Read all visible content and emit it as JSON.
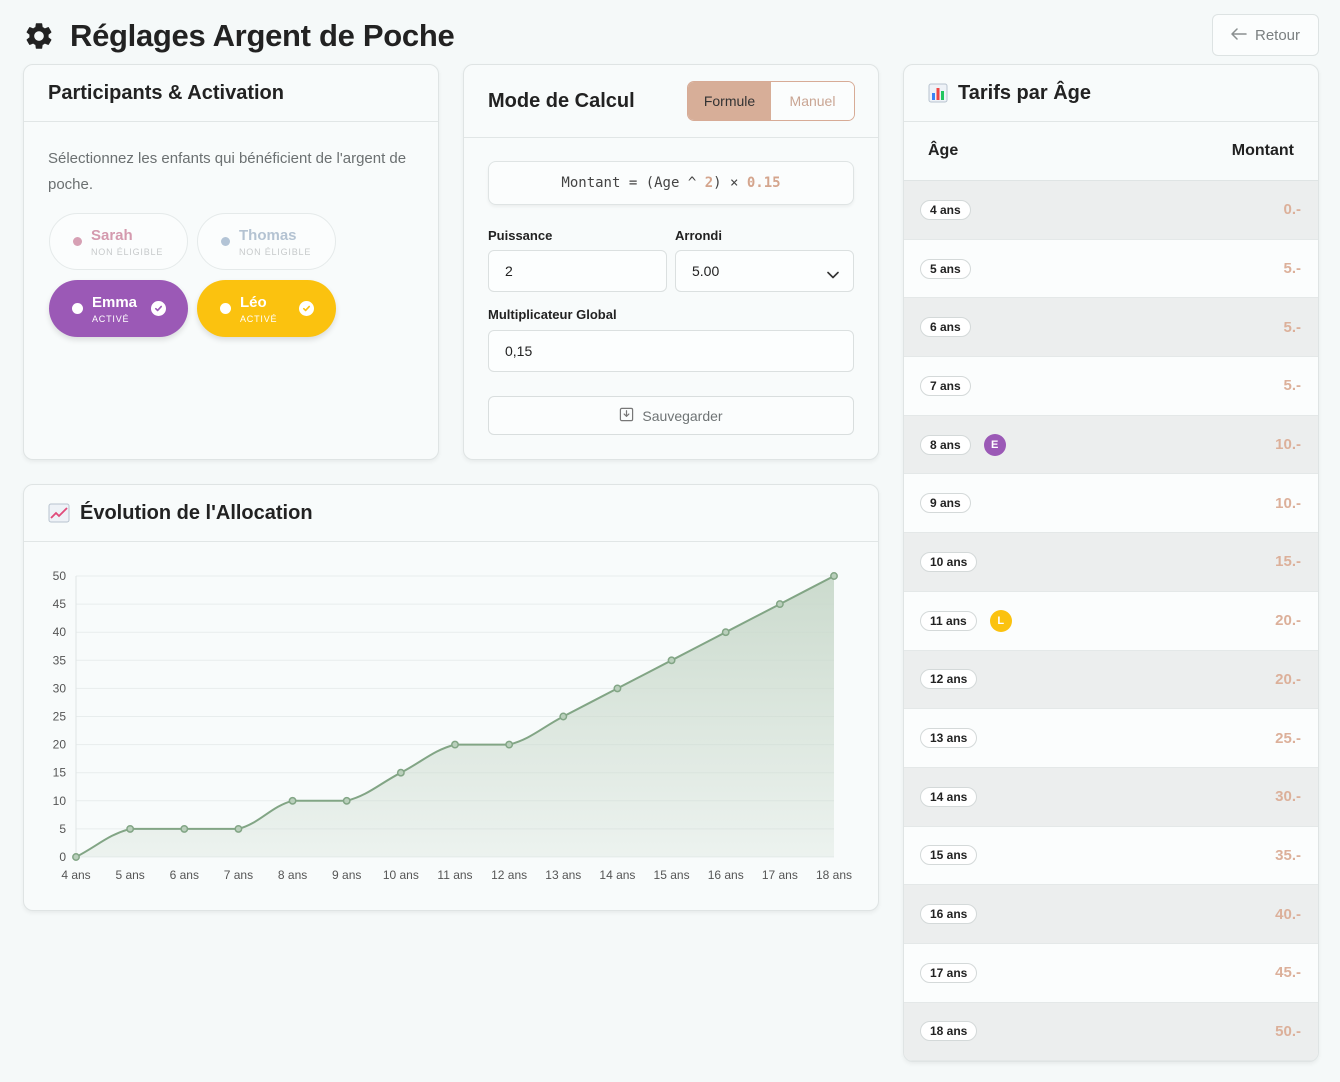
{
  "header": {
    "title": "Réglages Argent de Poche",
    "back_label": "Retour"
  },
  "participants": {
    "title": "Participants & Activation",
    "description": "Sélectionnez les enfants qui bénéficient de l'argent de poche.",
    "children": [
      {
        "name": "Sarah",
        "status": "NON ÉLIGIBLE",
        "active": false,
        "color": "#d38fa8"
      },
      {
        "name": "Thomas",
        "status": "NON ÉLIGIBLE",
        "active": false,
        "color": "#a9bfd6"
      },
      {
        "name": "Emma",
        "status": "ACTIVÉ",
        "active": true,
        "color": "#9b59b6"
      },
      {
        "name": "Léo",
        "status": "ACTIVÉ",
        "active": true,
        "color": "#fbc20f"
      }
    ]
  },
  "mode": {
    "title": "Mode de Calcul",
    "tabs": [
      "Formule",
      "Manuel"
    ],
    "selected_tab": "Formule",
    "formula": {
      "prefix": "Montant = (Age ^ ",
      "power": "2",
      "times": ") × ",
      "multiplier": "0.15"
    },
    "power_label": "Puissance",
    "power_value": "2",
    "rounding_label": "Arrondi",
    "rounding_value": "5.00",
    "multiplier_label": "Multiplicateur Global",
    "multiplier_value": "0,15",
    "save_label": "Sauvegarder"
  },
  "tarifs": {
    "title": "Tarifs par Âge",
    "col_age": "Âge",
    "col_amount": "Montant",
    "rows": [
      {
        "age": "4 ans",
        "amount": "0.-"
      },
      {
        "age": "5 ans",
        "amount": "5.-"
      },
      {
        "age": "6 ans",
        "amount": "5.-"
      },
      {
        "age": "7 ans",
        "amount": "5.-"
      },
      {
        "age": "8 ans",
        "amount": "10.-",
        "badge": "E",
        "badge_color": "#9b59b6"
      },
      {
        "age": "9 ans",
        "amount": "10.-"
      },
      {
        "age": "10 ans",
        "amount": "15.-"
      },
      {
        "age": "11 ans",
        "amount": "20.-",
        "badge": "L",
        "badge_color": "#fbc20f"
      },
      {
        "age": "12 ans",
        "amount": "20.-"
      },
      {
        "age": "13 ans",
        "amount": "25.-"
      },
      {
        "age": "14 ans",
        "amount": "30.-"
      },
      {
        "age": "15 ans",
        "amount": "35.-"
      },
      {
        "age": "16 ans",
        "amount": "40.-"
      },
      {
        "age": "17 ans",
        "amount": "45.-"
      },
      {
        "age": "18 ans",
        "amount": "50.-"
      }
    ]
  },
  "chart_title": "Évolution de l'Allocation",
  "chart_data": {
    "type": "area",
    "title": "Évolution de l'Allocation",
    "categories": [
      "4 ans",
      "5 ans",
      "6 ans",
      "7 ans",
      "8 ans",
      "9 ans",
      "10 ans",
      "11 ans",
      "12 ans",
      "13 ans",
      "14 ans",
      "15 ans",
      "16 ans",
      "17 ans",
      "18 ans"
    ],
    "values": [
      0,
      5,
      5,
      5,
      10,
      10,
      15,
      20,
      20,
      25,
      30,
      35,
      40,
      45,
      50
    ],
    "ylim": [
      0,
      50
    ],
    "yticks": [
      0,
      5,
      10,
      15,
      20,
      25,
      30,
      35,
      40,
      45,
      50
    ],
    "grid": true,
    "line_color": "#82a585",
    "fill_color": "#c9d9cb"
  }
}
